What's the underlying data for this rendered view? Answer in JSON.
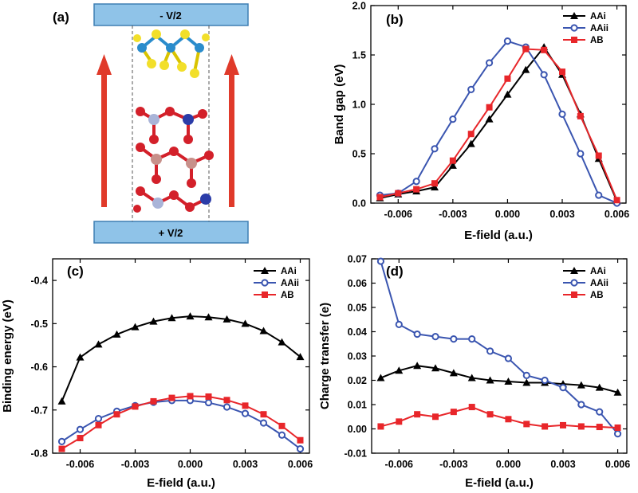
{
  "chart_data": [
    {
      "panel": "(a)",
      "type": "diagram",
      "top_electrode_label": "- V/2",
      "bottom_electrode_label": "+ V/2"
    },
    {
      "panel": "(b)",
      "type": "line",
      "xlabel": "E-field (a.u.)",
      "ylabel": "Band gap (eV)",
      "xlim": [
        -0.0075,
        0.0065
      ],
      "ylim": [
        0.0,
        2.0
      ],
      "xticks": [
        -0.006,
        -0.003,
        0.0,
        0.003,
        0.006
      ],
      "xtick_labels": [
        "-0.006",
        "-0.003",
        "0.000",
        "0.003",
        "0.006"
      ],
      "yticks": [
        0.0,
        0.5,
        1.0,
        1.5,
        2.0
      ],
      "ytick_labels": [
        "0.0",
        "0.5",
        "1.0",
        "1.5",
        "2.0"
      ],
      "legend_position": "top-right",
      "series": [
        {
          "name": "AAi",
          "color": "#000000",
          "marker": "triangle",
          "x": [
            -0.007,
            -0.006,
            -0.005,
            -0.004,
            -0.003,
            -0.002,
            -0.001,
            0.0,
            0.001,
            0.002,
            0.003,
            0.004,
            0.005,
            0.006
          ],
          "y": [
            0.05,
            0.09,
            0.12,
            0.16,
            0.38,
            0.6,
            0.85,
            1.1,
            1.35,
            1.58,
            1.3,
            0.9,
            0.45,
            0.02
          ]
        },
        {
          "name": "AAii",
          "color": "#3a55b0",
          "marker": "circle",
          "x": [
            -0.007,
            -0.006,
            -0.005,
            -0.004,
            -0.003,
            -0.002,
            -0.001,
            0.0,
            0.001,
            0.002,
            0.003,
            0.004,
            0.005,
            0.006
          ],
          "y": [
            0.08,
            0.1,
            0.22,
            0.55,
            0.85,
            1.15,
            1.42,
            1.64,
            1.58,
            1.3,
            0.9,
            0.5,
            0.08,
            0.0
          ]
        },
        {
          "name": "AB",
          "color": "#e8262a",
          "marker": "square",
          "x": [
            -0.007,
            -0.006,
            -0.005,
            -0.004,
            -0.003,
            -0.002,
            -0.001,
            0.0,
            0.001,
            0.002,
            0.003,
            0.004,
            0.005,
            0.006
          ],
          "y": [
            0.06,
            0.1,
            0.14,
            0.2,
            0.43,
            0.7,
            0.97,
            1.26,
            1.56,
            1.55,
            1.33,
            0.88,
            0.48,
            0.03
          ]
        }
      ]
    },
    {
      "panel": "(c)",
      "type": "line",
      "xlabel": "E-field (a.u.)",
      "ylabel": "Binding energy (eV)",
      "xlim": [
        -0.0075,
        0.0065
      ],
      "ylim": [
        -0.8,
        -0.35
      ],
      "xticks": [
        -0.006,
        -0.003,
        0.0,
        0.003,
        0.006
      ],
      "xtick_labels": [
        "-0.006",
        "-0.003",
        "0.000",
        "0.003",
        "0.006"
      ],
      "yticks": [
        -0.8,
        -0.7,
        -0.6,
        -0.5,
        -0.4
      ],
      "ytick_labels": [
        "-0.8",
        "-0.7",
        "-0.6",
        "-0.5",
        "-0.4"
      ],
      "legend_position": "top-right",
      "series": [
        {
          "name": "AAi",
          "color": "#000000",
          "marker": "triangle",
          "x": [
            -0.007,
            -0.006,
            -0.005,
            -0.004,
            -0.003,
            -0.002,
            -0.001,
            0.0,
            0.001,
            0.002,
            0.003,
            0.004,
            0.005,
            0.006
          ],
          "y": [
            -0.68,
            -0.578,
            -0.548,
            -0.525,
            -0.508,
            -0.495,
            -0.487,
            -0.483,
            -0.485,
            -0.49,
            -0.5,
            -0.517,
            -0.543,
            -0.577
          ]
        },
        {
          "name": "AAii",
          "color": "#3a55b0",
          "marker": "circle",
          "x": [
            -0.007,
            -0.006,
            -0.005,
            -0.004,
            -0.003,
            -0.002,
            -0.001,
            0.0,
            0.001,
            0.002,
            0.003,
            0.004,
            0.005,
            0.006
          ],
          "y": [
            -0.773,
            -0.745,
            -0.72,
            -0.703,
            -0.69,
            -0.682,
            -0.678,
            -0.678,
            -0.683,
            -0.693,
            -0.708,
            -0.73,
            -0.758,
            -0.79
          ]
        },
        {
          "name": "AB",
          "color": "#e8262a",
          "marker": "square",
          "x": [
            -0.007,
            -0.006,
            -0.005,
            -0.004,
            -0.003,
            -0.002,
            -0.001,
            0.0,
            0.001,
            0.002,
            0.003,
            0.004,
            0.005,
            0.006
          ],
          "y": [
            -0.79,
            -0.765,
            -0.735,
            -0.71,
            -0.692,
            -0.68,
            -0.672,
            -0.668,
            -0.669,
            -0.677,
            -0.69,
            -0.71,
            -0.737,
            -0.77
          ]
        }
      ]
    },
    {
      "panel": "(d)",
      "type": "line",
      "xlabel": "E-field (a.u.)",
      "ylabel": "Charge transfer (e)",
      "xlim": [
        -0.0075,
        0.0065
      ],
      "ylim": [
        -0.01,
        0.07
      ],
      "xticks": [
        -0.006,
        -0.003,
        0.0,
        0.003,
        0.006
      ],
      "xtick_labels": [
        "-0.006",
        "-0.003",
        "0.000",
        "0.003",
        "0.006"
      ],
      "yticks": [
        -0.01,
        0.0,
        0.01,
        0.02,
        0.03,
        0.04,
        0.05,
        0.06,
        0.07
      ],
      "ytick_labels": [
        "-0.01",
        "0.00",
        "0.01",
        "0.02",
        "0.03",
        "0.04",
        "0.05",
        "0.06",
        "0.07"
      ],
      "legend_position": "top-right",
      "series": [
        {
          "name": "AAi",
          "color": "#000000",
          "marker": "triangle",
          "x": [
            -0.007,
            -0.006,
            -0.005,
            -0.004,
            -0.003,
            -0.002,
            -0.001,
            0.0,
            0.001,
            0.002,
            0.003,
            0.004,
            0.005,
            0.006
          ],
          "y": [
            0.021,
            0.024,
            0.026,
            0.025,
            0.023,
            0.021,
            0.02,
            0.0195,
            0.019,
            0.019,
            0.0185,
            0.018,
            0.017,
            0.015
          ]
        },
        {
          "name": "AAii",
          "color": "#3a55b0",
          "marker": "circle",
          "x": [
            -0.007,
            -0.006,
            -0.005,
            -0.004,
            -0.003,
            -0.002,
            -0.001,
            0.0,
            0.001,
            0.002,
            0.003,
            0.004,
            0.005,
            0.006
          ],
          "y": [
            0.069,
            0.043,
            0.039,
            0.038,
            0.037,
            0.037,
            0.032,
            0.029,
            0.022,
            0.02,
            0.017,
            0.01,
            0.007,
            -0.002
          ]
        },
        {
          "name": "AB",
          "color": "#e8262a",
          "marker": "square",
          "x": [
            -0.007,
            -0.006,
            -0.005,
            -0.004,
            -0.003,
            -0.002,
            -0.001,
            0.0,
            0.001,
            0.002,
            0.003,
            0.004,
            0.005,
            0.006
          ],
          "y": [
            0.001,
            0.003,
            0.006,
            0.005,
            0.007,
            0.009,
            0.006,
            0.004,
            0.002,
            0.001,
            0.0015,
            0.001,
            0.0008,
            0.0005
          ]
        }
      ]
    }
  ]
}
